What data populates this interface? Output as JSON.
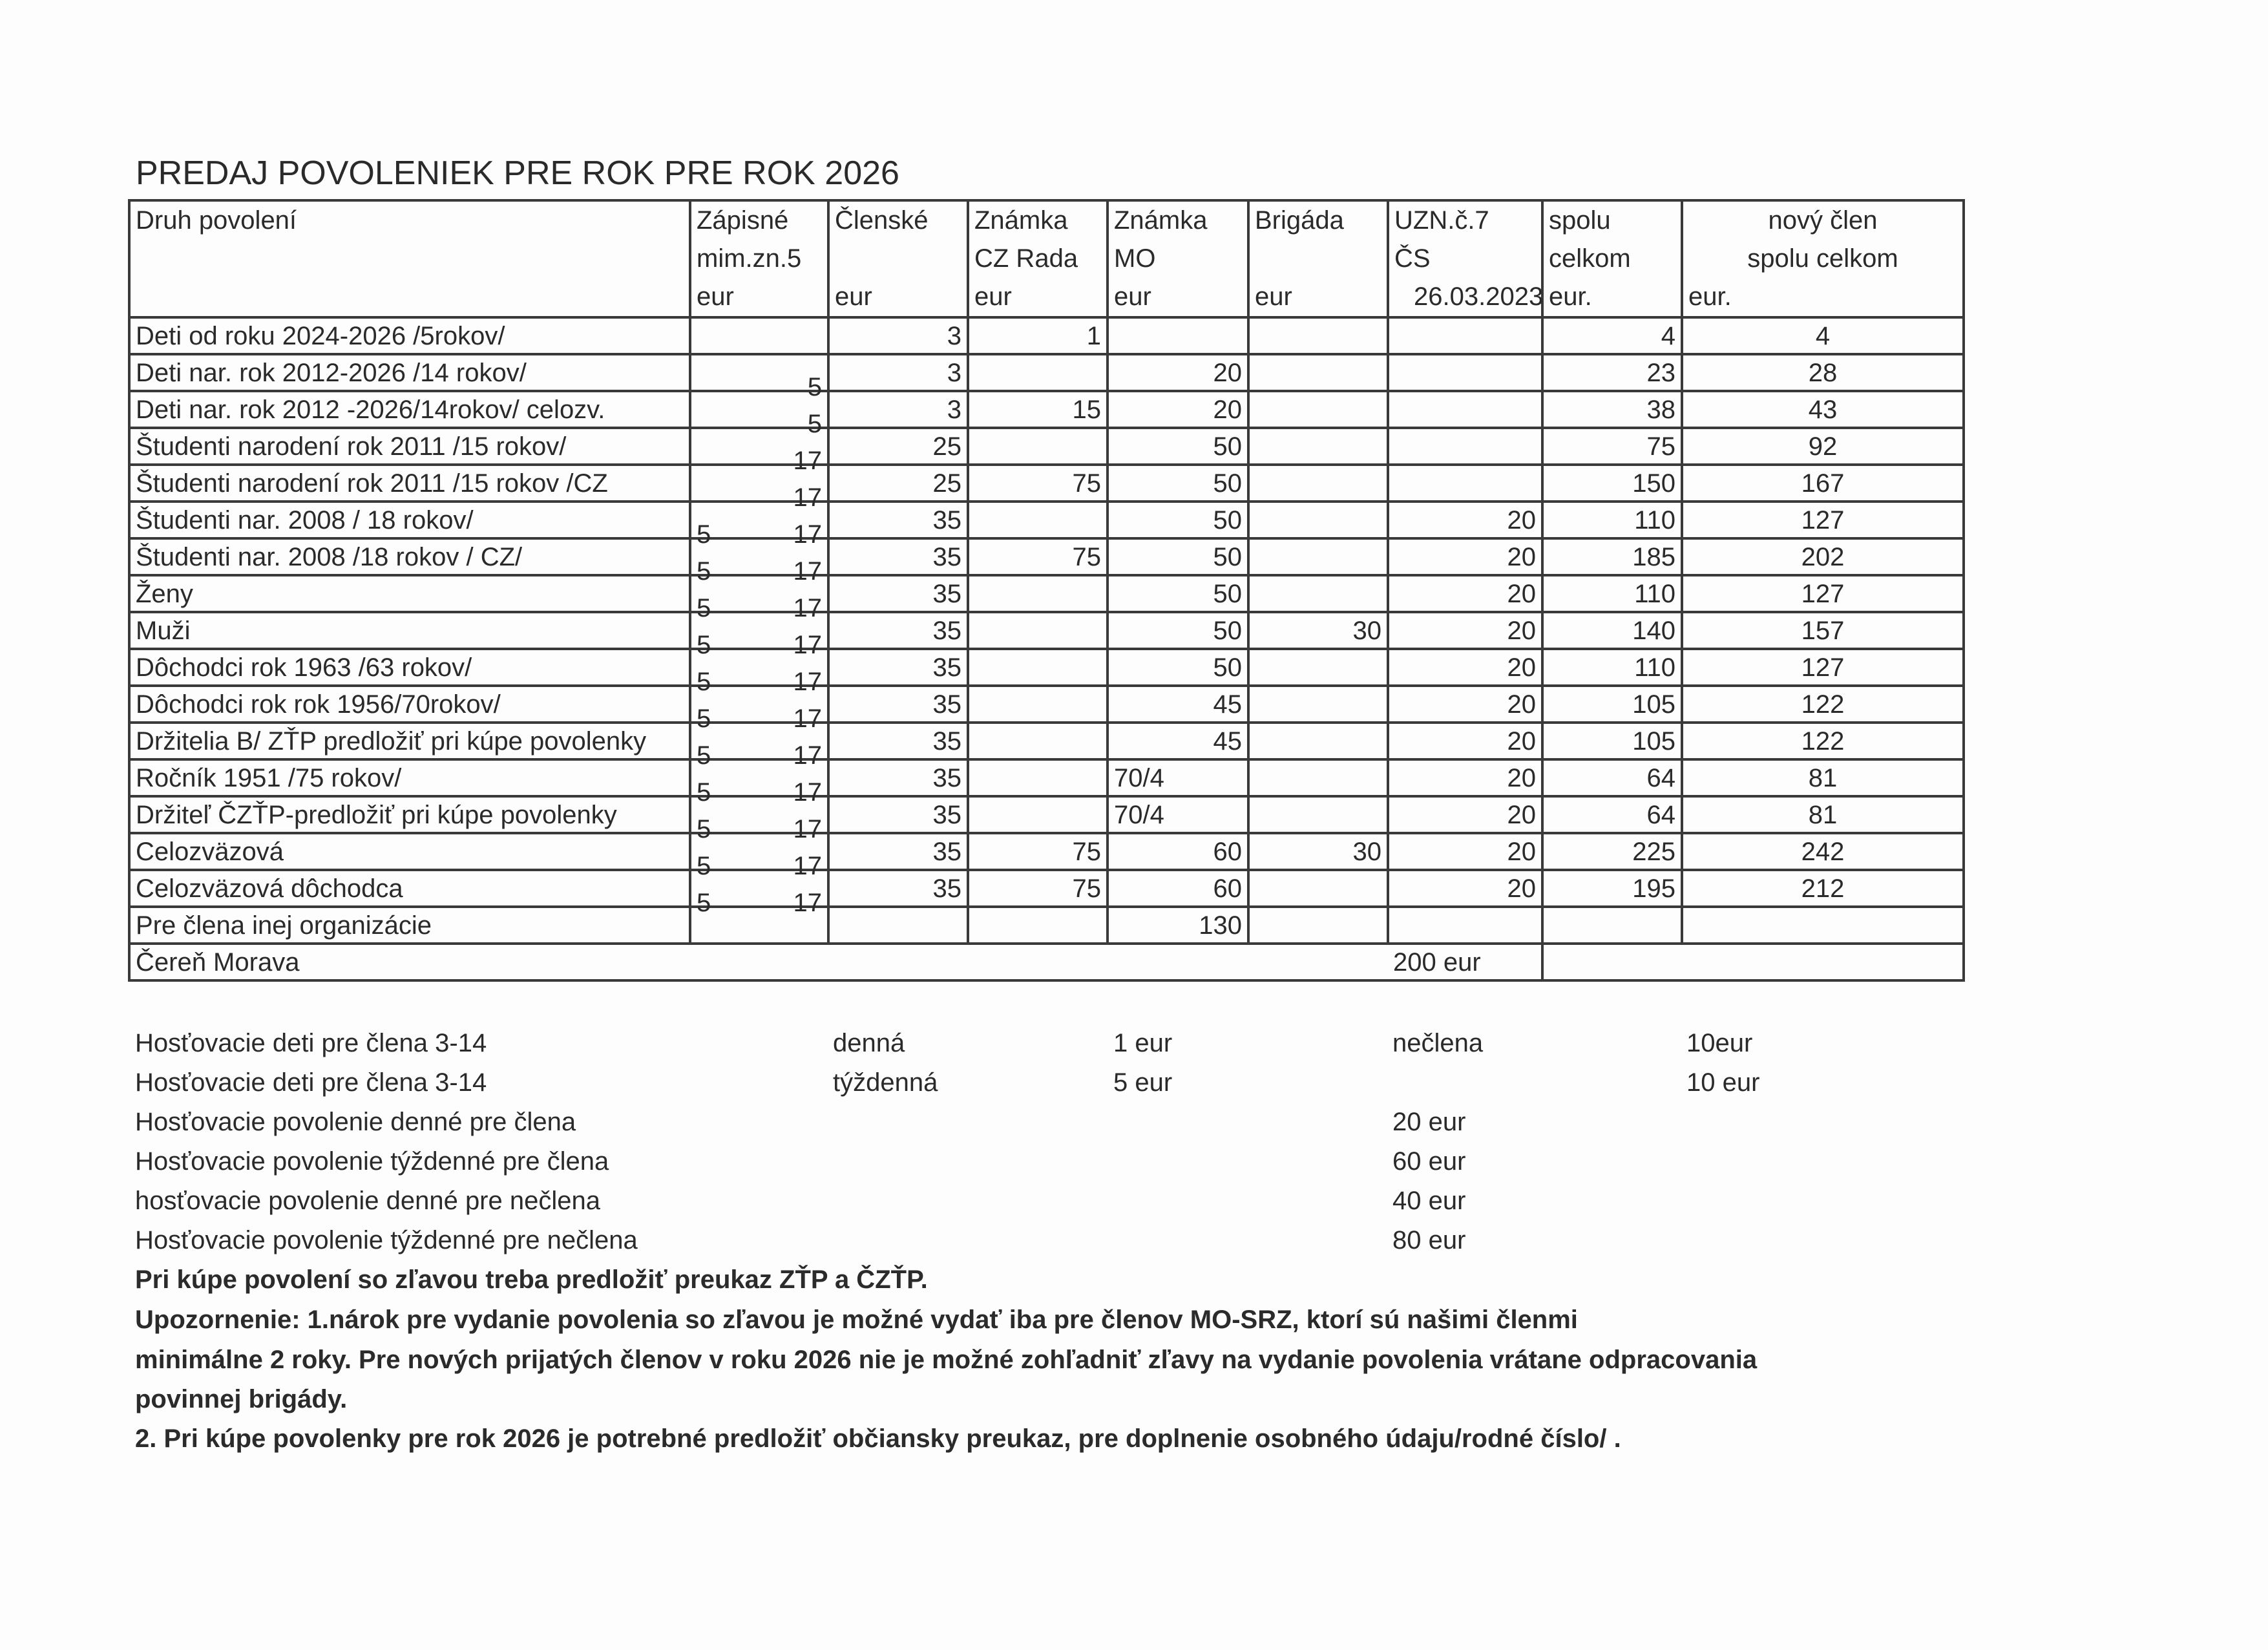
{
  "title": "PREDAJ POVOLENIEK PRE ROK  PRE ROK 2026",
  "header": {
    "druh": [
      "Druh povolení"
    ],
    "zapisne": [
      "Zápisné",
      "mim.zn.5",
      "eur"
    ],
    "clenske": [
      "Členské",
      "",
      "eur"
    ],
    "znamka_cz": [
      "Známka",
      "CZ Rada",
      "eur"
    ],
    "znamka_mo": [
      "Známka",
      "MO",
      "eur"
    ],
    "brigada": [
      "Brigáda",
      "",
      "eur"
    ],
    "uzn": [
      "UZN.č.7",
      "ČS",
      "26.03.2023"
    ],
    "spolu": [
      "spolu",
      "celkom",
      "eur."
    ],
    "novy": [
      "nový člen",
      "spolu celkom",
      "eur."
    ]
  },
  "rows": [
    {
      "druh": "Deti od roku 2024-2026 /5rokov/",
      "zap_a": "",
      "zap_b": "",
      "clenske": "3",
      "znamka_cz": "1",
      "znamka_mo": "",
      "brigada": "",
      "uzn": "",
      "spolu": "4",
      "novy": "4"
    },
    {
      "druh": "Deti nar. rok 2012-2026 /14 rokov/",
      "zap_a": "",
      "zap_b": "5",
      "clenske": "3",
      "znamka_cz": "",
      "znamka_mo": "20",
      "brigada": "",
      "uzn": "",
      "spolu": "23",
      "novy": "28"
    },
    {
      "druh": "Deti nar. rok 2012 -2026/14rokov/ celozv.",
      "zap_a": "",
      "zap_b": "5",
      "clenske": "3",
      "znamka_cz": "15",
      "znamka_mo": "20",
      "brigada": "",
      "uzn": "",
      "spolu": "38",
      "novy": "43"
    },
    {
      "druh": "Študenti narodení rok 2011 /15 rokov/",
      "zap_a": "",
      "zap_b": "17",
      "clenske": "25",
      "znamka_cz": "",
      "znamka_mo": "50",
      "brigada": "",
      "uzn": "",
      "spolu": "75",
      "novy": "92"
    },
    {
      "druh": "Študenti  narodení  rok 2011 /15 rokov /CZ",
      "zap_a": "",
      "zap_b": "17",
      "clenske": "25",
      "znamka_cz": "75",
      "znamka_mo": "50",
      "brigada": "",
      "uzn": "",
      "spolu": "150",
      "novy": "167"
    },
    {
      "druh": "Študenti nar. 2008 /     18 rokov/",
      "zap_a": "5",
      "zap_b": "17",
      "clenske": "35",
      "znamka_cz": "",
      "znamka_mo": "50",
      "brigada": "",
      "uzn": "20",
      "spolu": "110",
      "novy": "127"
    },
    {
      "druh": "Študenti nar. 2008 /18 rokov / CZ/",
      "zap_a": "5",
      "zap_b": "17",
      "clenske": "35",
      "znamka_cz": "75",
      "znamka_mo": "50",
      "brigada": "",
      "uzn": "20",
      "spolu": "185",
      "novy": "202"
    },
    {
      "druh": "Ženy",
      "zap_a": "5",
      "zap_b": "17",
      "clenske": "35",
      "znamka_cz": "",
      "znamka_mo": "50",
      "brigada": "",
      "uzn": "20",
      "spolu": "110",
      "novy": "127"
    },
    {
      "druh": "Muži",
      "zap_a": "5",
      "zap_b": "17",
      "clenske": "35",
      "znamka_cz": "",
      "znamka_mo": "50",
      "brigada": "30",
      "uzn": "20",
      "spolu": "140",
      "novy": "157"
    },
    {
      "druh": "Dôchodci rok 1963 /63 rokov/",
      "zap_a": "5",
      "zap_b": "17",
      "clenske": "35",
      "znamka_cz": "",
      "znamka_mo": "50",
      "brigada": "",
      "uzn": "20",
      "spolu": "110",
      "novy": "127"
    },
    {
      "druh": "Dôchodci rok  rok 1956/70rokov/",
      "zap_a": "5",
      "zap_b": "17",
      "clenske": "35",
      "znamka_cz": "",
      "znamka_mo": "45",
      "brigada": "",
      "uzn": "20",
      "spolu": "105",
      "novy": "122"
    },
    {
      "druh": "Držitelia B/ ZŤP predložiť pri kúpe povolenky",
      "zap_a": "5",
      "zap_b": "17",
      "clenske": "35",
      "znamka_cz": "",
      "znamka_mo": "45",
      "brigada": "",
      "uzn": "20",
      "spolu": "105",
      "novy": "122"
    },
    {
      "druh": "Ročník 1951 /75 rokov/",
      "zap_a": "5",
      "zap_b": "17",
      "clenske": "35",
      "znamka_cz": "",
      "znamka_mo": "70/4",
      "brigada": "",
      "uzn": "20",
      "spolu": "64",
      "novy": "81"
    },
    {
      "druh": "Držiteľ ČZŤP-predložiť pri kúpe povolenky",
      "zap_a": "5",
      "zap_b": "17",
      "clenske": "35",
      "znamka_cz": "",
      "znamka_mo": "70/4",
      "brigada": "",
      "uzn": "20",
      "spolu": "64",
      "novy": "81"
    },
    {
      "druh": "Celozväzová",
      "zap_a": "5",
      "zap_b": "17",
      "clenske": "35",
      "znamka_cz": "75",
      "znamka_mo": "60",
      "brigada": "30",
      "uzn": "20",
      "spolu": "225",
      "novy": "242"
    },
    {
      "druh": "Celozväzová  dôchodca",
      "zap_a": "5",
      "zap_b": "17",
      "clenske": "35",
      "znamka_cz": "75",
      "znamka_mo": "60",
      "brigada": "",
      "uzn": "20",
      "spolu": "195",
      "novy": "212"
    },
    {
      "druh": "Pre člena inej organizácie",
      "zap_a": "",
      "zap_b": "",
      "clenske": "",
      "znamka_cz": "",
      "znamka_mo": "130",
      "brigada": "",
      "uzn": "",
      "spolu": "",
      "novy": ""
    }
  ],
  "ceren": {
    "label": "Čereň Morava",
    "price": "200 eur"
  },
  "guest": [
    {
      "label": "Hosťovacie deti  pre člena 3-14",
      "type": "denná",
      "member": "1 eur",
      "col3": "nečlena",
      "col4": "10eur"
    },
    {
      "label": "Hosťovacie  deti pre člena 3-14",
      "type": "týždenná",
      "member": "5 eur",
      "col3": "",
      "col4": "10 eur"
    },
    {
      "label": "Hosťovacie povolenie denné pre člena",
      "type": "",
      "member": "",
      "col3": "20 eur",
      "col4": ""
    },
    {
      "label": "Hosťovacie povolenie  týždenné pre člena",
      "type": "",
      "member": "",
      "col3": "60 eur",
      "col4": ""
    },
    {
      "label": "hosťovacie povolenie denné pre nečlena",
      "type": "",
      "member": "",
      "col3": "40 eur",
      "col4": ""
    },
    {
      "label": "Hosťovacie povolenie  týždenné pre nečlena",
      "type": "",
      "member": "",
      "col3": "80 eur",
      "col4": ""
    }
  ],
  "notes": [
    "Pri  kúpe povolení so zľavou treba predložiť preukaz ZŤP a ČZŤP.",
    "Upozornenie:  1.nárok  pre vydanie povolenia so zľavou je možné vydať iba  pre členov MO-SRZ, ktorí sú našimi členmi",
    "minimálne 2 roky. Pre nových prijatých členov v roku 2026 nie je možné zohľadniť zľavy na vydanie povolenia vrátane  odpracovania",
    "povinnej brigády.",
    "2. Pri kúpe povolenky  pre rok 2026 je potrebné  predložiť občiansky preukaz, pre doplnenie osobného údaju/rodné číslo/ ."
  ]
}
